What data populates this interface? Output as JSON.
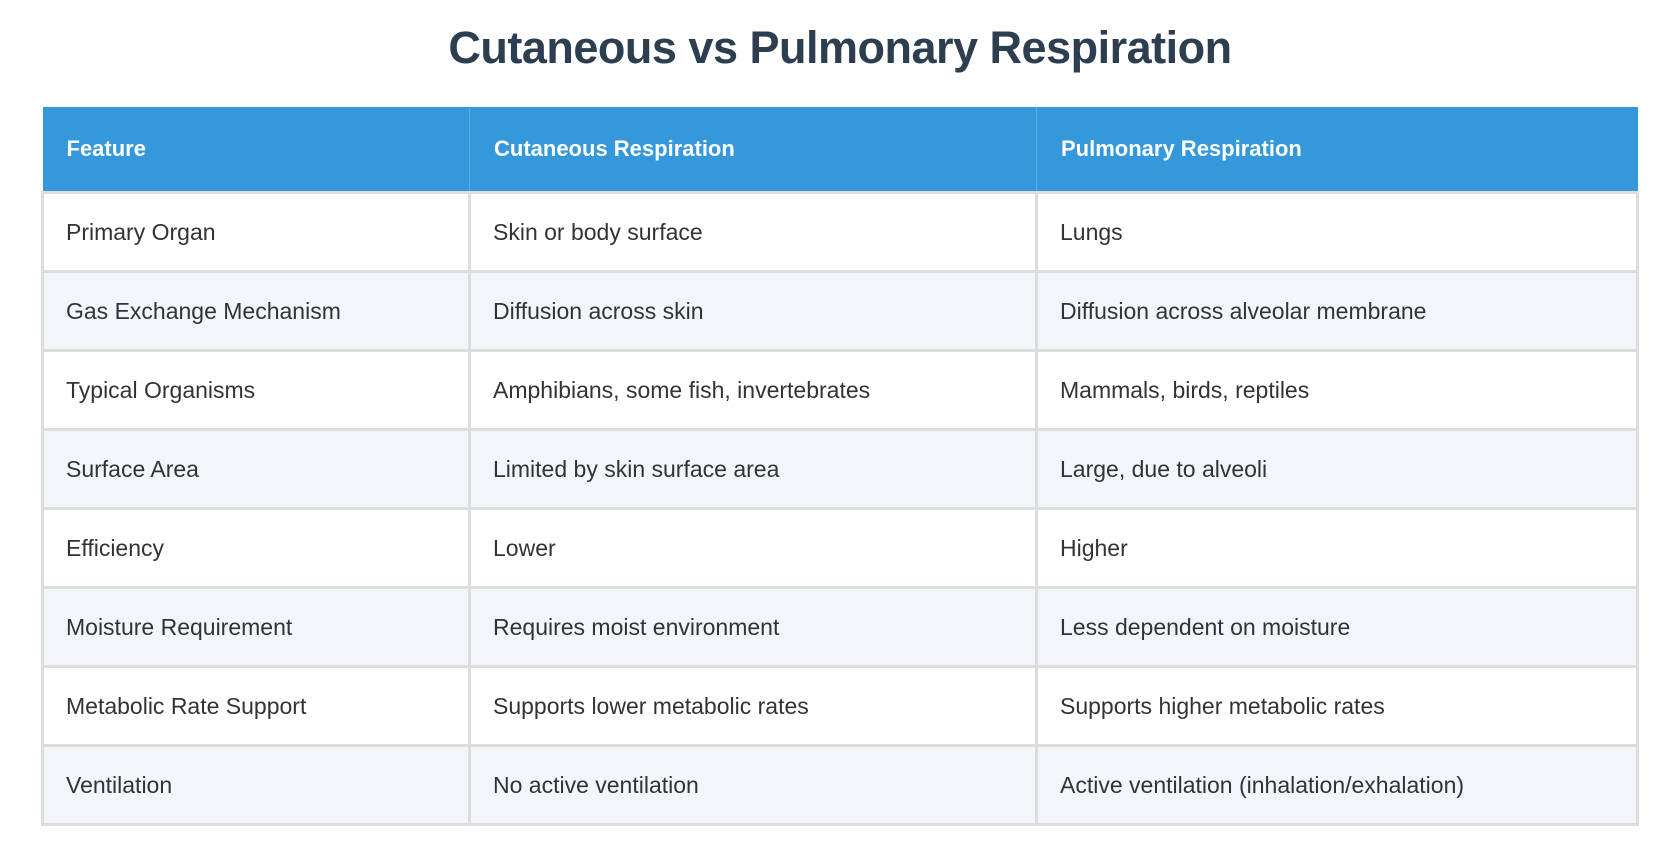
{
  "title": "Cutaneous vs Pulmonary Respiration",
  "table": {
    "headers": [
      "Feature",
      "Cutaneous Respiration",
      "Pulmonary Respiration"
    ],
    "rows": [
      [
        "Primary Organ",
        "Skin or body surface",
        "Lungs"
      ],
      [
        "Gas Exchange Mechanism",
        "Diffusion across skin",
        "Diffusion across alveolar membrane"
      ],
      [
        "Typical Organisms",
        "Amphibians, some fish, invertebrates",
        "Mammals, birds, reptiles"
      ],
      [
        "Surface Area",
        "Limited by skin surface area",
        "Large, due to alveoli"
      ],
      [
        "Efficiency",
        "Lower",
        "Higher"
      ],
      [
        "Moisture Requirement",
        "Requires moist environment",
        "Less dependent on moisture"
      ],
      [
        "Metabolic Rate Support",
        "Supports lower metabolic rates",
        "Supports higher metabolic rates"
      ],
      [
        "Ventilation",
        "No active ventilation",
        "Active ventilation (inhalation/exhalation)"
      ]
    ]
  },
  "colors": {
    "header_bg": "#3498db",
    "title": "#2c3e50",
    "alt_row": "#f2f5fa"
  }
}
